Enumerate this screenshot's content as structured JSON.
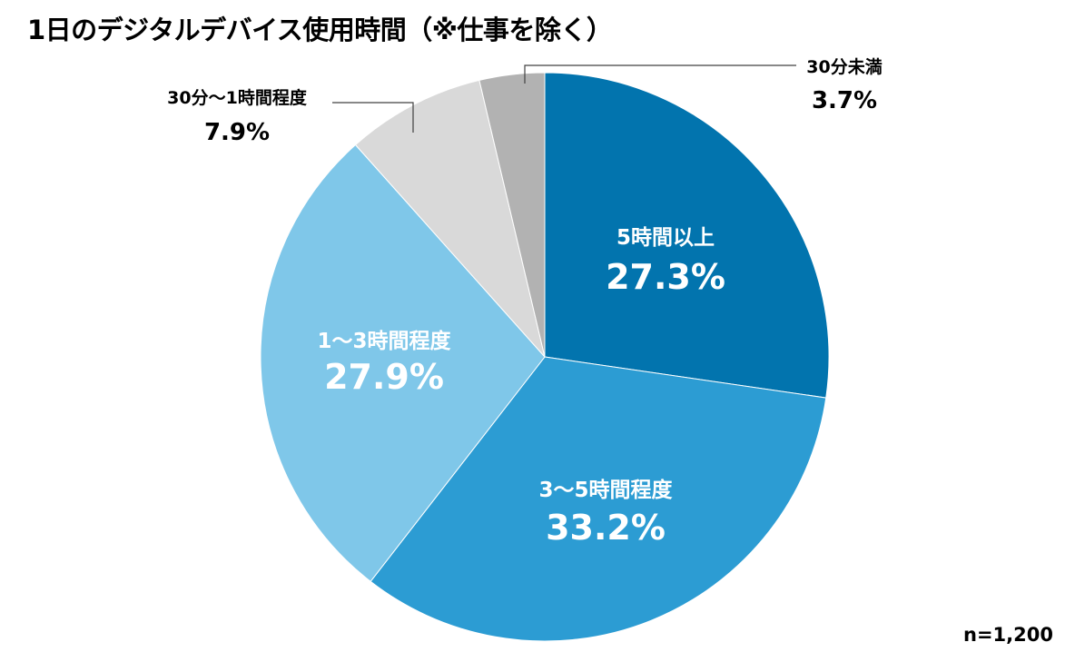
{
  "chart_data": {
    "type": "pie",
    "title": "1日のデジタルデバイス使用時間（※仕事を除く）",
    "categories": [
      "5時間以上",
      "3〜5時間程度",
      "1〜3時間程度",
      "30分〜1時間程度",
      "30分未満"
    ],
    "values": [
      27.3,
      33.2,
      27.9,
      7.9,
      3.7
    ],
    "value_labels": [
      "27.3%",
      "33.2%",
      "27.9%",
      "7.9%",
      "3.7%"
    ],
    "colors": [
      "#0274AE",
      "#2C9CD3",
      "#7FC7E9",
      "#D9D9D9",
      "#B2B2B2"
    ],
    "label_colors": [
      "#FFFFFF",
      "#FFFFFF",
      "#FFFFFF",
      "#000000",
      "#000000"
    ],
    "note": "n=1,200",
    "legend": "none",
    "start_angle": "12 o'clock, clockwise"
  }
}
